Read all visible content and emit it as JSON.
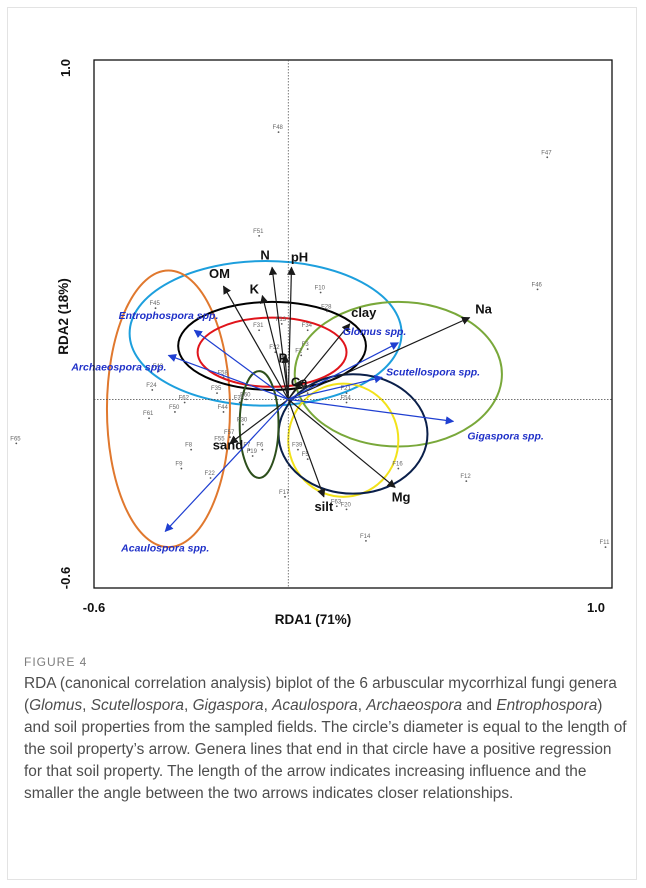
{
  "figure": {
    "label": "FIGURE 4",
    "caption_parts": [
      {
        "text": "RDA (canonical correlation analysis) biplot of the 6 arbuscular mycorrhizal fungi genera (",
        "italic": false
      },
      {
        "text": "Glomus",
        "italic": true
      },
      {
        "text": ", ",
        "italic": false
      },
      {
        "text": "Scutellospora",
        "italic": true
      },
      {
        "text": ", ",
        "italic": false
      },
      {
        "text": "Gigaspora",
        "italic": true
      },
      {
        "text": ", ",
        "italic": false
      },
      {
        "text": "Acaulospora",
        "italic": true
      },
      {
        "text": ", ",
        "italic": false
      },
      {
        "text": "Archaeospora",
        "italic": true
      },
      {
        "text": " and ",
        "italic": false
      },
      {
        "text": "Entrophospora",
        "italic": true
      },
      {
        "text": ") and soil properties from the sampled fields. The circle’s diameter is equal to the length of the soil property’s arrow. Genera lines that end in that circle have a positive regression for that soil property. The length of the arrow indicates increasing influence and the smaller the angle between the two arrows indicates closer relationships.",
        "italic": false
      }
    ]
  },
  "chart_data": {
    "type": "scatter",
    "xlabel": "RDA1 (71%)",
    "ylabel": "RDA2 (18%)",
    "xlim": [
      -0.6,
      1.0
    ],
    "ylim": [
      -0.6,
      1.0
    ],
    "x_tick_labels": [
      "-0.6",
      "1.0"
    ],
    "y_tick_labels": [
      "-0.6",
      "1.0"
    ],
    "grid": false,
    "soil_arrows": [
      {
        "name": "N",
        "x": -0.05,
        "y": 0.42
      },
      {
        "name": "pH",
        "x": 0.01,
        "y": 0.42
      },
      {
        "name": "OM",
        "x": -0.2,
        "y": 0.36
      },
      {
        "name": "K",
        "x": -0.08,
        "y": 0.33
      },
      {
        "name": "P",
        "x": -0.01,
        "y": 0.14
      },
      {
        "name": "clay",
        "x": 0.19,
        "y": 0.24
      },
      {
        "name": "Na",
        "x": 0.56,
        "y": 0.26
      },
      {
        "name": "Ca",
        "x": 0.04,
        "y": 0.06
      },
      {
        "name": "sand",
        "x": -0.18,
        "y": -0.14
      },
      {
        "name": "silt",
        "x": 0.11,
        "y": -0.31
      },
      {
        "name": "Mg",
        "x": 0.33,
        "y": -0.28
      }
    ],
    "genus_arrows": [
      {
        "name": "Glomus spp.",
        "x": 0.34,
        "y": 0.18
      },
      {
        "name": "Scutellospora spp.",
        "x": 0.29,
        "y": 0.07
      },
      {
        "name": "Gigaspora spp.",
        "x": 0.51,
        "y": -0.07
      },
      {
        "name": "Acaulospora spp.",
        "x": -0.38,
        "y": -0.42
      },
      {
        "name": "Archaeospora spp.",
        "x": -0.37,
        "y": 0.14
      },
      {
        "name": "Entrophospora spp.",
        "x": -0.29,
        "y": 0.22
      }
    ],
    "sites": [
      {
        "name": "F48",
        "x": -0.03,
        "y": 0.85
      },
      {
        "name": "F47",
        "x": 0.8,
        "y": 0.77
      },
      {
        "name": "F51",
        "x": -0.09,
        "y": 0.52
      },
      {
        "name": "F46",
        "x": 0.77,
        "y": 0.35
      },
      {
        "name": "F45",
        "x": -0.41,
        "y": 0.29
      },
      {
        "name": "F10",
        "x": 0.1,
        "y": 0.34
      },
      {
        "name": "F28",
        "x": 0.12,
        "y": 0.28
      },
      {
        "name": "F13",
        "x": -0.02,
        "y": 0.24
      },
      {
        "name": "F34",
        "x": 0.06,
        "y": 0.22
      },
      {
        "name": "F31",
        "x": -0.09,
        "y": 0.22
      },
      {
        "name": "F32",
        "x": -0.04,
        "y": 0.15
      },
      {
        "name": "F2",
        "x": 0.04,
        "y": 0.14
      },
      {
        "name": "F3",
        "x": 0.06,
        "y": 0.16
      },
      {
        "name": "F58",
        "x": -0.2,
        "y": 0.07
      },
      {
        "name": "F43",
        "x": -0.4,
        "y": 0.09
      },
      {
        "name": "F24",
        "x": -0.42,
        "y": 0.03
      },
      {
        "name": "F35",
        "x": -0.22,
        "y": 0.02
      },
      {
        "name": "F29",
        "x": 0.06,
        "y": 0.02
      },
      {
        "name": "F60",
        "x": -0.13,
        "y": 0.0
      },
      {
        "name": "F33",
        "x": -0.15,
        "y": -0.01
      },
      {
        "name": "F62",
        "x": -0.32,
        "y": -0.01
      },
      {
        "name": "F44",
        "x": -0.2,
        "y": -0.04
      },
      {
        "name": "F50",
        "x": -0.35,
        "y": -0.04
      },
      {
        "name": "F61",
        "x": -0.43,
        "y": -0.06
      },
      {
        "name": "F30",
        "x": -0.14,
        "y": -0.08
      },
      {
        "name": "F57",
        "x": -0.18,
        "y": -0.12
      },
      {
        "name": "F55",
        "x": -0.21,
        "y": -0.14
      },
      {
        "name": "F8",
        "x": -0.3,
        "y": -0.16
      },
      {
        "name": "F54",
        "x": 0.18,
        "y": -0.01
      },
      {
        "name": "F21",
        "x": 0.18,
        "y": 0.02
      },
      {
        "name": "F65",
        "x": -0.84,
        "y": -0.14
      },
      {
        "name": "F7",
        "x": -0.12,
        "y": -0.16
      },
      {
        "name": "F6",
        "x": -0.08,
        "y": -0.16
      },
      {
        "name": "F19",
        "x": -0.11,
        "y": -0.18
      },
      {
        "name": "F39",
        "x": 0.03,
        "y": -0.16
      },
      {
        "name": "F5",
        "x": 0.06,
        "y": -0.19
      },
      {
        "name": "F9",
        "x": -0.33,
        "y": -0.22
      },
      {
        "name": "F22",
        "x": -0.24,
        "y": -0.25
      },
      {
        "name": "F16",
        "x": 0.34,
        "y": -0.22
      },
      {
        "name": "F12",
        "x": 0.55,
        "y": -0.26
      },
      {
        "name": "F17",
        "x": -0.01,
        "y": -0.31
      },
      {
        "name": "F63",
        "x": 0.15,
        "y": -0.34
      },
      {
        "name": "F20",
        "x": 0.18,
        "y": -0.35
      },
      {
        "name": "F14",
        "x": 0.24,
        "y": -0.45
      },
      {
        "name": "F11",
        "x": 0.98,
        "y": -0.47
      }
    ]
  },
  "colors": {
    "soil_arrow": "#1a1a1a",
    "genus_arrow": "#1f3fd1",
    "genus_label": "#1f30c8",
    "circles": [
      "#1d9fdd",
      "#e0782e",
      "#79a83a",
      "#000000",
      "#e0141b",
      "#f2e21a",
      "#0a1f4a",
      "#2d4f1c"
    ]
  }
}
